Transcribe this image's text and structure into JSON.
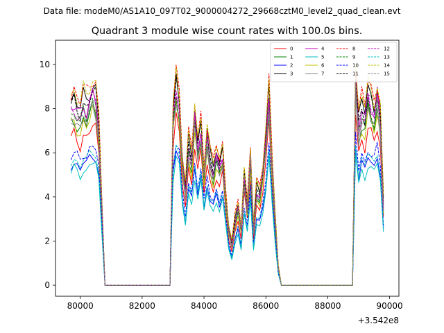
{
  "figure": {
    "suptitle": "Data file: modeM0/AS1A10_097T02_9000004272_29668cztM0_level2_quad_clean.evt"
  },
  "chart_data": {
    "type": "line",
    "title": "Quadrant 3 module wise count rates with 100.0s bins.",
    "xlabel": "",
    "ylabel": "",
    "offset_label": "+3.542e8",
    "x_offset": 354200000,
    "xlim": [
      79200,
      90300
    ],
    "ylim": [
      -0.5,
      11.1
    ],
    "xticks": [
      80000,
      82000,
      84000,
      86000,
      88000,
      90000
    ],
    "xtick_labels": [
      "80000",
      "82000",
      "84000",
      "86000",
      "88000",
      "90000"
    ],
    "yticks": [
      0,
      2,
      4,
      6,
      8,
      10
    ],
    "ytick_labels": [
      "0",
      "2",
      "4",
      "6",
      "8",
      "10"
    ],
    "grid": false,
    "legend_position": "top-right",
    "legend_columns": 4,
    "x": [
      79700,
      79800,
      79900,
      80000,
      80100,
      80200,
      80300,
      80400,
      80500,
      80600,
      80700,
      80800,
      80900,
      81000,
      81100,
      81200,
      81300,
      81400,
      81500,
      81600,
      81700,
      81800,
      81900,
      82000,
      82100,
      82200,
      82300,
      82400,
      82500,
      82600,
      82700,
      82800,
      82900,
      83000,
      83100,
      83200,
      83300,
      83400,
      83500,
      83600,
      83700,
      83800,
      83900,
      84000,
      84100,
      84200,
      84300,
      84400,
      84500,
      84600,
      84700,
      84800,
      84900,
      85000,
      85100,
      85200,
      85300,
      85400,
      85500,
      85600,
      85700,
      85800,
      85900,
      86000,
      86100,
      86200,
      86300,
      86400,
      86500,
      86600,
      86700,
      86800,
      86900,
      87000,
      87100,
      87200,
      87300,
      87400,
      87500,
      87600,
      87700,
      87800,
      87900,
      88000,
      88100,
      88200,
      88300,
      88400,
      88500,
      88600,
      88700,
      88800,
      88900,
      89000,
      89100,
      89200,
      89300,
      89400,
      89500,
      89600,
      89700,
      89800
    ],
    "base_profile": [
      0.78,
      0.8,
      0.77,
      0.75,
      0.8,
      0.78,
      0.82,
      0.85,
      0.83,
      0.7,
      0.35,
      0,
      0,
      0,
      0,
      0,
      0,
      0,
      0,
      0,
      0,
      0,
      0,
      0,
      0,
      0,
      0,
      0,
      0,
      0,
      0,
      0,
      0,
      0.74,
      0.88,
      0.8,
      0.55,
      0.42,
      0.62,
      0.55,
      0.75,
      0.6,
      0.7,
      0.5,
      0.66,
      0.55,
      0.5,
      0.58,
      0.52,
      0.58,
      0.4,
      0.25,
      0.18,
      0.28,
      0.35,
      0.25,
      0.48,
      0.35,
      0.58,
      0.25,
      0.42,
      0.4,
      0.5,
      0.65,
      0.85,
      0.55,
      0.3,
      0.08,
      0,
      0,
      0,
      0,
      0,
      0,
      0,
      0,
      0,
      0,
      0,
      0,
      0,
      0,
      0,
      0,
      0,
      0,
      0,
      0,
      0,
      0,
      0,
      0,
      0.92,
      0.7,
      0.78,
      0.74,
      0.84,
      0.8,
      0.76,
      0.84,
      0.73,
      0.36
    ],
    "series": [
      {
        "name": "0",
        "color": "#ff0000",
        "dash": "solid",
        "scale": 8.5
      },
      {
        "name": "1",
        "color": "#008000",
        "dash": "solid",
        "scale": 9.4
      },
      {
        "name": "2",
        "color": "#0000ff",
        "dash": "solid",
        "scale": 7.0
      },
      {
        "name": "3",
        "color": "#000000",
        "dash": "solid",
        "scale": 10.7
      },
      {
        "name": "4",
        "color": "#bf00bf",
        "dash": "solid",
        "scale": 10.2
      },
      {
        "name": "5",
        "color": "#00bfbf",
        "dash": "solid",
        "scale": 6.6
      },
      {
        "name": "6",
        "color": "#bfbf00",
        "dash": "solid",
        "scale": 9.2
      },
      {
        "name": "7",
        "color": "#808080",
        "dash": "solid",
        "scale": 9.5
      },
      {
        "name": "8",
        "color": "#ff0000",
        "dash": "dashed",
        "scale": 11.1
      },
      {
        "name": "9",
        "color": "#008000",
        "dash": "dashed",
        "scale": 9.8
      },
      {
        "name": "10",
        "color": "#0000ff",
        "dash": "dashed",
        "scale": 7.5
      },
      {
        "name": "11",
        "color": "#000000",
        "dash": "dashed",
        "scale": 10.3
      },
      {
        "name": "12",
        "color": "#bf00bf",
        "dash": "dashed",
        "scale": 10.0
      },
      {
        "name": "13",
        "color": "#00bfbf",
        "dash": "dashed",
        "scale": 7.2
      },
      {
        "name": "14",
        "color": "#bfbf00",
        "dash": "dashed",
        "scale": 11.0
      },
      {
        "name": "15",
        "color": "#808080",
        "dash": "dashed",
        "scale": 9.7
      }
    ]
  }
}
